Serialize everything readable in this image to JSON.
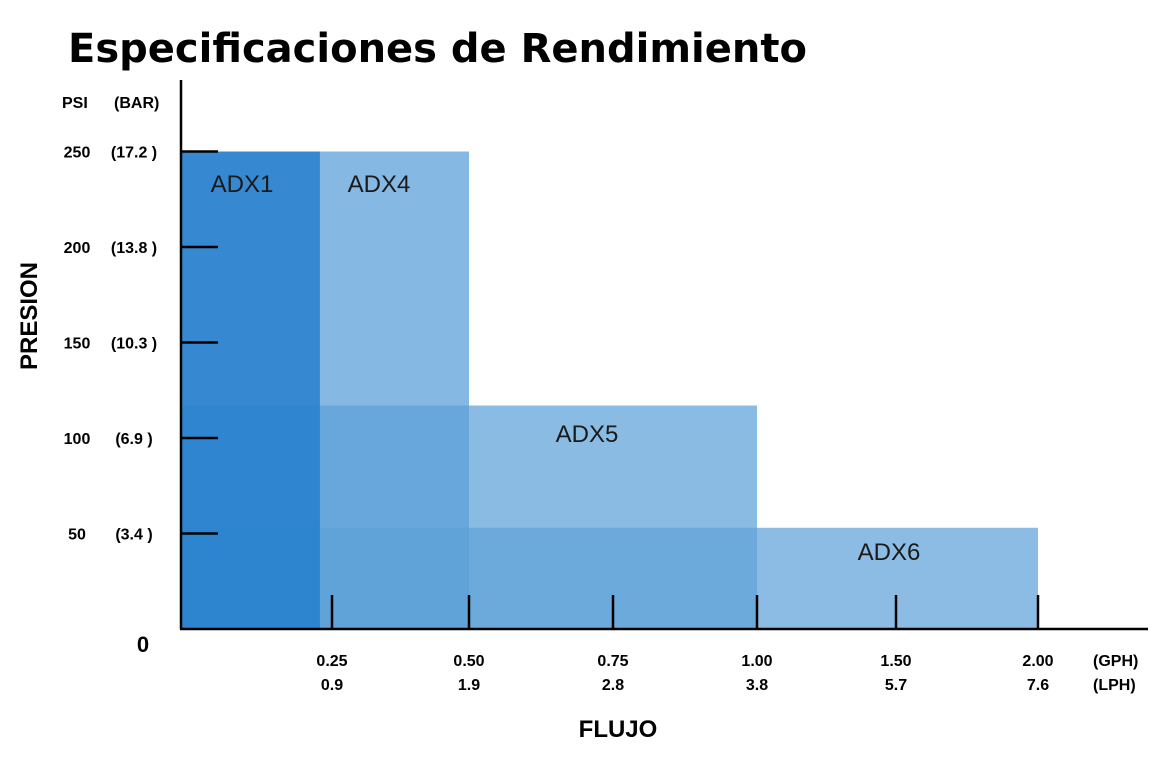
{
  "chart_data": {
    "type": "bar",
    "title": "Especificaciones de Rendimiento",
    "xlabel": "FLUJO",
    "ylabel": "PRESION",
    "y_units": [
      "PSI",
      "(BAR)"
    ],
    "x_units": [
      "(GPH)",
      "(LPH)"
    ],
    "origin_label": "0",
    "y_ticks": [
      {
        "psi": "50",
        "bar": "(3.4 )",
        "value": 50
      },
      {
        "psi": "100",
        "bar": "(6.9 )",
        "value": 100
      },
      {
        "psi": "150",
        "bar": "(10.3 )",
        "value": 150
      },
      {
        "psi": "200",
        "bar": "(13.8 )",
        "value": 200
      },
      {
        "psi": "250",
        "bar": "(17.2 )",
        "value": 250
      }
    ],
    "x_ticks": [
      {
        "gph": "0.25",
        "lph": "0.9",
        "value": 0.25
      },
      {
        "gph": "0.50",
        "lph": "1.9",
        "value": 0.5
      },
      {
        "gph": "0.75",
        "lph": "2.8",
        "value": 0.75
      },
      {
        "gph": "1.00",
        "lph": "3.8",
        "value": 1.0
      },
      {
        "gph": "1.50",
        "lph": "5.7",
        "value": 1.5
      },
      {
        "gph": "2.00",
        "lph": "7.6",
        "value": 2.0
      }
    ],
    "series": [
      {
        "name": "ADX1",
        "max_flow_gph": 0.23,
        "max_pressure_psi": 250,
        "color": "#1C7ACB"
      },
      {
        "name": "ADX4",
        "max_flow_gph": 0.5,
        "max_pressure_psi": 250,
        "color": "#5CA0D8"
      },
      {
        "name": "ADX5",
        "max_flow_gph": 1.0,
        "max_pressure_psi": 117,
        "color": "#62A4DA"
      },
      {
        "name": "ADX6",
        "max_flow_gph": 2.0,
        "max_pressure_psi": 53,
        "color": "#65A6DB"
      }
    ]
  }
}
